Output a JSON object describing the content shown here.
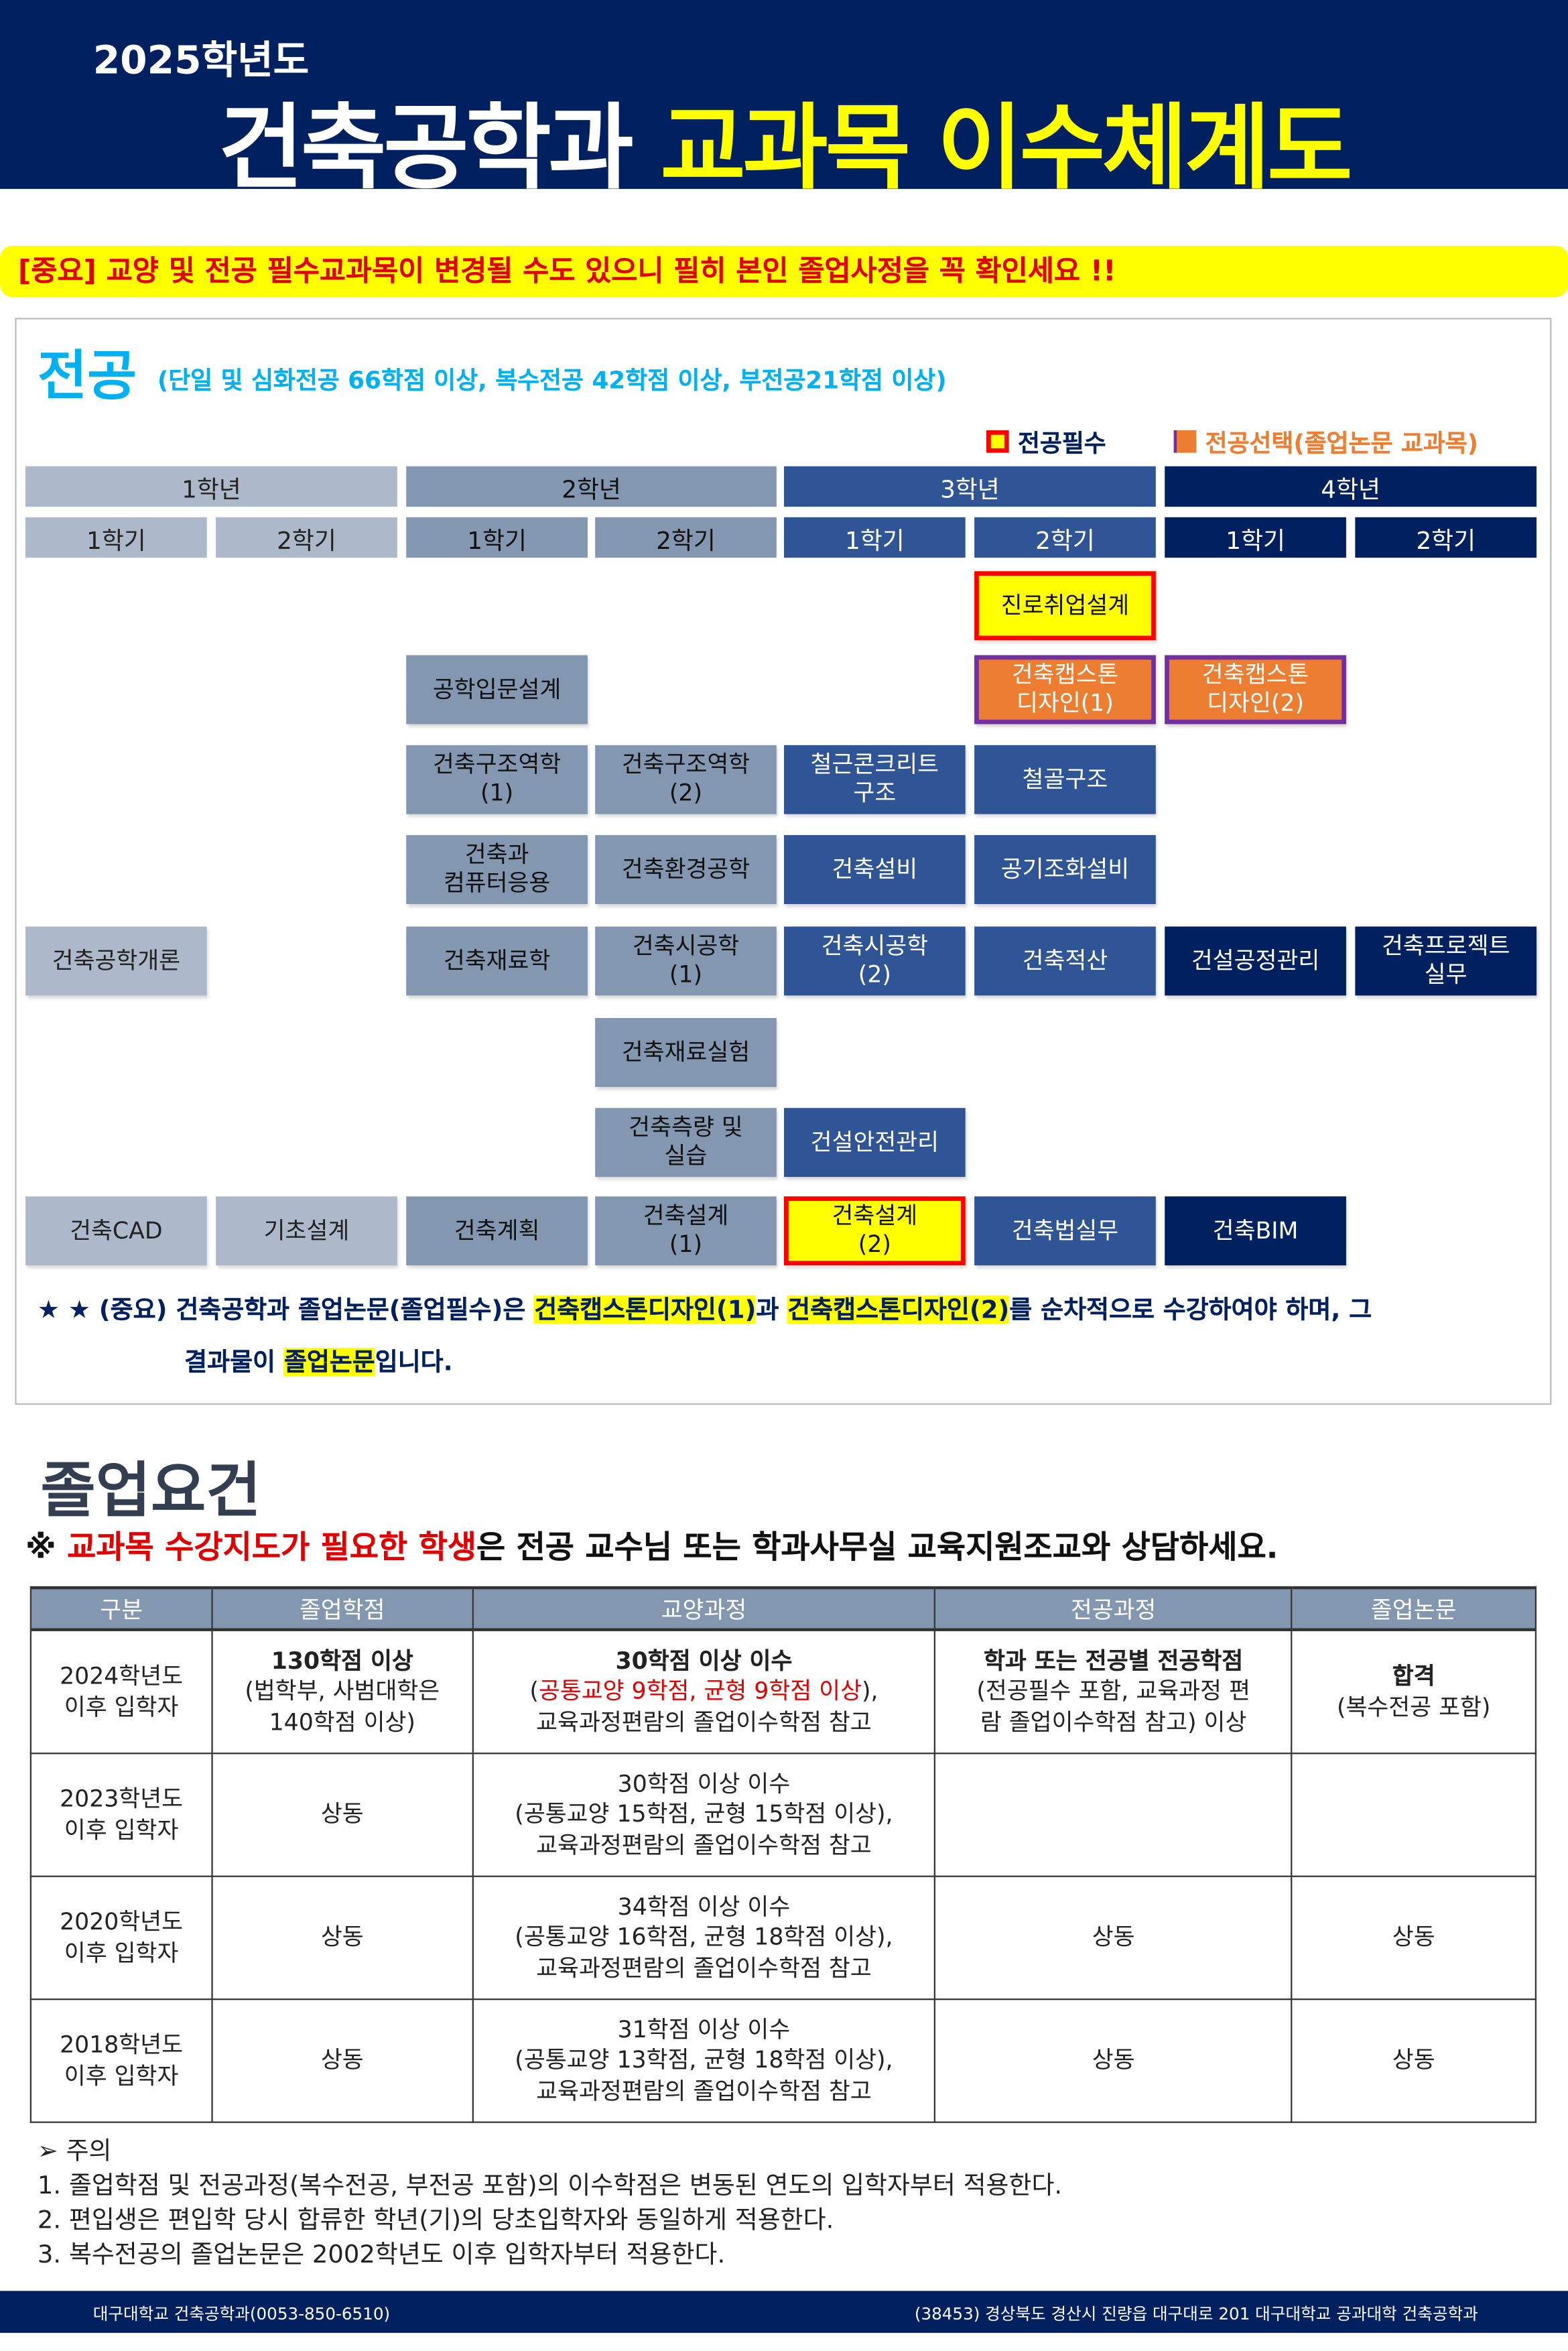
{
  "header": {
    "year": "2025학년도",
    "title_white": "건축공학과",
    "title_yellow": "교과목 이수체계도"
  },
  "banner": "[중요] 교양 및 전공 필수교과목이 변경될 수도 있으니 필히 본인 졸업사정을 꼭 확인세요 !!",
  "major": {
    "title": "전공",
    "subtitle": "(단일 및 심화전공 66학점 이상, 복수전공 42학점 이상, 부전공21학점 이상)",
    "legend": {
      "required": "전공필수",
      "elective": "전공선택(졸업논문 교과목)"
    },
    "colors": {
      "year1": "#adb9ca",
      "year2": "#8497b0",
      "year3": "#2f5597",
      "year4": "#002060",
      "required": "#ffff00",
      "elective": "#ed7d31"
    },
    "years": [
      "1학년",
      "2학년",
      "3학년",
      "4학년"
    ],
    "semesters": [
      "1학기",
      "2학기",
      "1학기",
      "2학기",
      "1학기",
      "2학기",
      "1학기",
      "2학기"
    ],
    "courses": [
      {
        "row": 0,
        "col": 5,
        "name": "진로취업설계",
        "type": "required"
      },
      {
        "row": 1,
        "col": 2,
        "name": "공학입문설계"
      },
      {
        "row": 1,
        "col": 5,
        "name": "건축캡스톤\n디자인(1)",
        "type": "elective"
      },
      {
        "row": 1,
        "col": 6,
        "name": "건축캡스톤\n디자인(2)",
        "type": "elective"
      },
      {
        "row": 2,
        "col": 2,
        "name": "건축구조역학\n(1)"
      },
      {
        "row": 2,
        "col": 3,
        "name": "건축구조역학\n(2)"
      },
      {
        "row": 2,
        "col": 4,
        "name": "철근콘크리트\n구조"
      },
      {
        "row": 2,
        "col": 5,
        "name": "철골구조"
      },
      {
        "row": 3,
        "col": 2,
        "name": "건축과\n컴퓨터응용"
      },
      {
        "row": 3,
        "col": 3,
        "name": "건축환경공학"
      },
      {
        "row": 3,
        "col": 4,
        "name": "건축설비"
      },
      {
        "row": 3,
        "col": 5,
        "name": "공기조화설비"
      },
      {
        "row": 4,
        "col": 0,
        "name": "건축공학개론"
      },
      {
        "row": 4,
        "col": 2,
        "name": "건축재료학"
      },
      {
        "row": 4,
        "col": 3,
        "name": "건축시공학\n(1)"
      },
      {
        "row": 4,
        "col": 4,
        "name": "건축시공학\n(2)"
      },
      {
        "row": 4,
        "col": 5,
        "name": "건축적산"
      },
      {
        "row": 4,
        "col": 6,
        "name": "건설공정관리"
      },
      {
        "row": 4,
        "col": 7,
        "name": "건축프로젝트\n실무"
      },
      {
        "row": 5,
        "col": 3,
        "name": "건축재료실험"
      },
      {
        "row": 6,
        "col": 3,
        "name": "건축측량 및\n실습"
      },
      {
        "row": 6,
        "col": 4,
        "name": "건설안전관리"
      },
      {
        "row": 7,
        "col": 0,
        "name": "건축CAD"
      },
      {
        "row": 7,
        "col": 1,
        "name": "기초설계"
      },
      {
        "row": 7,
        "col": 2,
        "name": "건축계획"
      },
      {
        "row": 7,
        "col": 3,
        "name": "건축설계\n(1)"
      },
      {
        "row": 7,
        "col": 4,
        "name": "건축설계\n(2)",
        "type": "required"
      },
      {
        "row": 7,
        "col": 5,
        "name": "건축법실무"
      },
      {
        "row": 7,
        "col": 6,
        "name": "건축BIM"
      }
    ],
    "note": {
      "p1": "★ ★ (중요) 건축공학과 졸업논문(졸업필수)은 ",
      "h1": "건축캡스톤디자인(1)",
      "p2": "과 ",
      "h2": "건축캡스톤디자인(2)",
      "p3": "를 순차적으로  수강하여야 하며, 그",
      "p4": "결과물이 ",
      "h3": "졸업논문",
      "p5": "입니다."
    }
  },
  "graduation": {
    "title": "졸업요건",
    "advice_prefix": "※ ",
    "advice_red": "교과목 수강지도가 필요한 학생",
    "advice_rest": "은 전공 교수님 또는 학과사무실 교육지원조교와 상담하세요.",
    "headers": [
      "구분",
      "졸업학점",
      "교양과정",
      "전공과정",
      "졸업논문"
    ],
    "rows": [
      {
        "cat": "2024학년도\n이후 입학자",
        "credits_bold": "130학점 이상",
        "credits": "(법학부, 사범대학은\n140학점 이상)",
        "gen_bold": "30학점 이상 이수",
        "gen_red": "공통교양 9학점, 균형 9학점 이상",
        "gen_rest": "교육과정편람의 졸업이수학점 참고",
        "major_bold": "학과 또는 전공별 전공학점",
        "major": "(전공필수 포함, 교육과정 편\n람 졸업이수학점 참고) 이상",
        "thesis_bold": "합격",
        "thesis": "(복수전공 포함)"
      },
      {
        "cat": "2023학년도\n이후 입학자",
        "credits": "상동",
        "gen": "30학점 이상 이수\n(공통교양 15학점, 균형 15학점 이상),\n교육과정편람의 졸업이수학점 참고",
        "major": "",
        "thesis": ""
      },
      {
        "cat": "2020학년도\n이후 입학자",
        "credits": "상동",
        "gen": "34학점 이상 이수\n(공통교양 16학점, 균형 18학점 이상),\n교육과정편람의 졸업이수학점 참고",
        "major": "상동",
        "thesis": "상동"
      },
      {
        "cat": "2018학년도\n이후 입학자",
        "credits": "상동",
        "gen": "31학점 이상 이수\n(공통교양 13학점, 균형 18학점 이상),\n교육과정편람의 졸업이수학점 참고",
        "major": "상동",
        "thesis": "상동"
      }
    ],
    "notes_title": "➢ 주의",
    "notes": [
      "1. 졸업학점 및 전공과정(복수전공, 부전공 포함)의 이수학점은 변동된 연도의 입학자부터 적용한다.",
      "2. 편입생은 편입학 당시 합류한 학년(기)의 당초입학자와 동일하게 적용한다.",
      "3. 복수전공의 졸업논문은 2002학년도 이후 입학자부터 적용한다."
    ]
  },
  "footer": {
    "left": "대구대학교 건축공학과(0053-850-6510)",
    "right": "(38453) 경상북도 경산시 진량읍 대구대로 201 대구대학교 공과대학 건축공학과"
  }
}
